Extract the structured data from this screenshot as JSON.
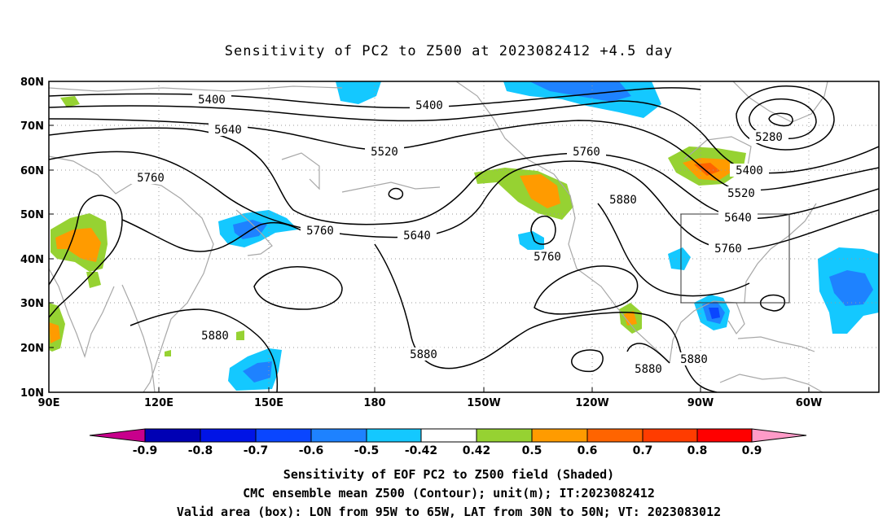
{
  "title": "Sensitivity of PC2 to Z500 at 2023082412 +4.5 day",
  "lat_labels": [
    "80N",
    "70N",
    "60N",
    "50N",
    "40N",
    "30N",
    "20N",
    "10N"
  ],
  "lon_labels": [
    "90E",
    "120E",
    "150E",
    "180",
    "150W",
    "120W",
    "90W",
    "60W"
  ],
  "contour_labels": [
    {
      "id": "c1",
      "text": "5400"
    },
    {
      "id": "c2",
      "text": "5400"
    },
    {
      "id": "c3",
      "text": "5640"
    },
    {
      "id": "c4",
      "text": "5520"
    },
    {
      "id": "c5",
      "text": "5760"
    },
    {
      "id": "c6",
      "text": "5760"
    },
    {
      "id": "c7",
      "text": "5880"
    },
    {
      "id": "c8",
      "text": "5280"
    },
    {
      "id": "c9",
      "text": "5400"
    },
    {
      "id": "c10",
      "text": "5520"
    },
    {
      "id": "c11",
      "text": "5640"
    },
    {
      "id": "c12",
      "text": "5760"
    },
    {
      "id": "c13",
      "text": "5760"
    },
    {
      "id": "c14",
      "text": "5640"
    },
    {
      "id": "c15",
      "text": "5760"
    },
    {
      "id": "c16",
      "text": "5880"
    },
    {
      "id": "c17",
      "text": "5880"
    },
    {
      "id": "c18",
      "text": "5880"
    },
    {
      "id": "c19",
      "text": "5880"
    }
  ],
  "colorbar": {
    "labels": [
      "-0.9",
      "-0.8",
      "-0.7",
      "-0.6",
      "-0.5",
      "-0.42",
      "0.42",
      "0.5",
      "0.6",
      "0.7",
      "0.8",
      "0.9"
    ],
    "colors": {
      "under": "#c8008c",
      "bins": [
        "#0000b4",
        "#0014e6",
        "#0a46ff",
        "#1e82ff",
        "#14c8ff",
        "#ffffff",
        "#96d232",
        "#ff9b00",
        "#ff6400",
        "#ff3c00",
        "#ff0000"
      ],
      "over": "#ff9bc8"
    }
  },
  "captions": {
    "line1": "Sensitivity of EOF PC2 to Z500 field (Shaded)",
    "line2": "CMC ensemble mean Z500 (Contour); unit(m); IT:2023082412",
    "line3": "Valid area (box): LON from 95W to 65W, LAT from 30N to 50N; VT: 2023083012"
  }
}
